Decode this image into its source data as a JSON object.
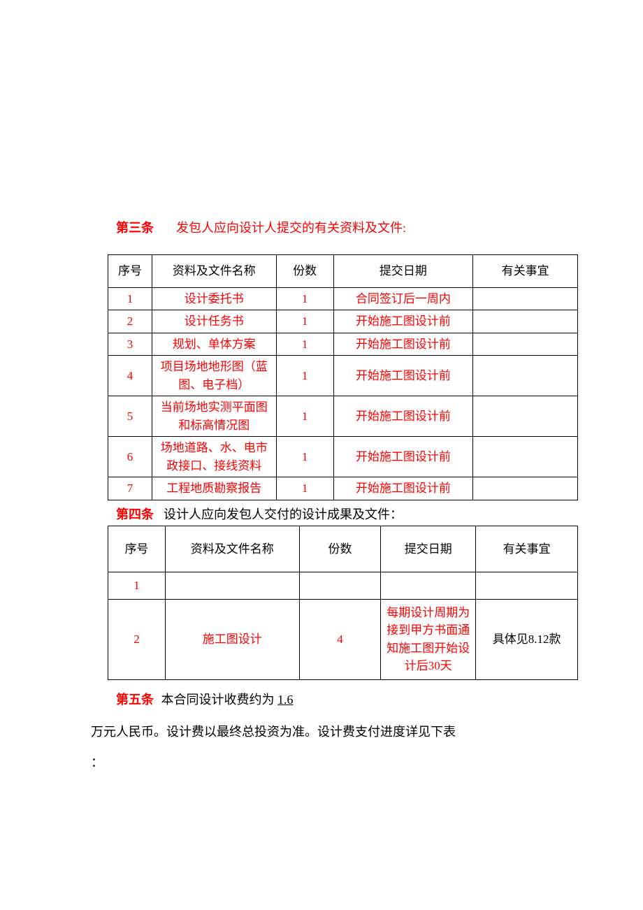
{
  "article3": {
    "label": "第三条",
    "text": "发包人应向设计人提交的有关资料及文件:"
  },
  "table1": {
    "headers": [
      "序号",
      "资料及文件名称",
      "份数",
      "提交日期",
      "有关事宜"
    ],
    "rows": [
      [
        "1",
        "设计委托书",
        "1",
        "合同签订后一周内",
        ""
      ],
      [
        "2",
        "设计任务书",
        "1",
        "开始施工图设计前",
        ""
      ],
      [
        "3",
        "规划、单体方案",
        "1",
        "开始施工图设计前",
        ""
      ],
      [
        "4",
        "项目场地地形图（蓝图、电子档）",
        "1",
        "开始施工图设计前",
        ""
      ],
      [
        "5",
        "当前场地实测平面图和标高情况图",
        "1",
        "开始施工图设计前",
        ""
      ],
      [
        "6",
        "场地道路、水、电市政接口、接线资料",
        "1",
        "开始施工图设计前",
        ""
      ],
      [
        "7",
        "工程地质勘察报告",
        "1",
        "开始施工图设计前",
        ""
      ]
    ]
  },
  "article4": {
    "label": "第四条",
    "text": "设计人应向发包人交付的设计成果及文件："
  },
  "table2": {
    "headers": [
      "序号",
      "资料及文件名称",
      "份数",
      "提交日期",
      "有关事宜"
    ],
    "rows": [
      [
        "1",
        "",
        "",
        "",
        ""
      ],
      [
        "2",
        "施工图设计",
        "4",
        "每期设计周期为接到甲方书面通知施工图开始设计后30天",
        "具体见8.12款"
      ]
    ]
  },
  "article5": {
    "label": "第五条",
    "text_before": "本合同设计收费约为",
    "value": " 1.6",
    "para": "万元人民币。设计费以最终总投资为准。设计费支付进度详见下表",
    "colon": "："
  },
  "colors": {
    "accent": "#ff0000",
    "text": "#000000",
    "border": "#000000",
    "background": "#ffffff"
  }
}
